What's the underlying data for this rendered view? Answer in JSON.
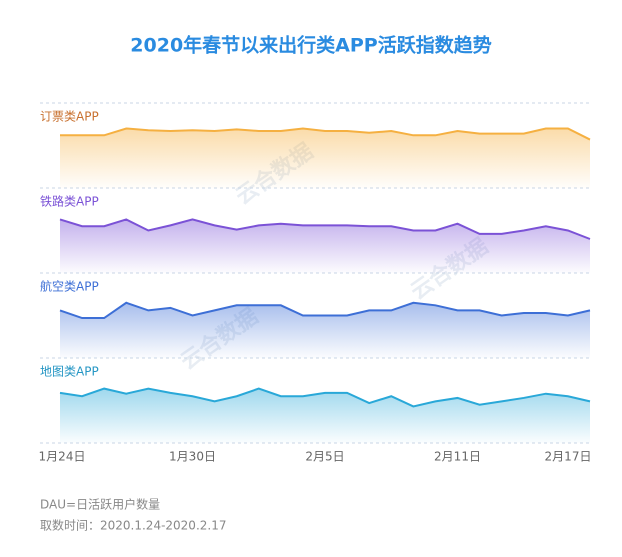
{
  "chart_data": {
    "type": "area",
    "title": "2020年春节以来出行类APP活跃指数趋势",
    "watermark": "云合数据",
    "categories": [
      "1月24日",
      null,
      null,
      null,
      null,
      null,
      "1月30日",
      null,
      null,
      null,
      null,
      null,
      "2月5日",
      null,
      null,
      null,
      null,
      null,
      "2月11日",
      null,
      null,
      null,
      null,
      null,
      "2月17日"
    ],
    "ylim": [
      0,
      100
    ],
    "series": [
      {
        "name": "订票类APP",
        "color": "#f5b041",
        "label_color": "#c8702e",
        "values": [
          62,
          62,
          62,
          70,
          68,
          67,
          68,
          67,
          69,
          67,
          67,
          70,
          67,
          67,
          65,
          67,
          62,
          62,
          67,
          64,
          64,
          64,
          70,
          70,
          57
        ]
      },
      {
        "name": "铁路类APP",
        "color": "#7b52d6",
        "label_color": "#7b52d6",
        "values": [
          63,
          55,
          55,
          63,
          50,
          56,
          63,
          56,
          51,
          56,
          58,
          56,
          56,
          56,
          55,
          55,
          50,
          50,
          58,
          46,
          46,
          50,
          55,
          50,
          40
        ]
      },
      {
        "name": "航空类APP",
        "color": "#3d6fd6",
        "label_color": "#3d6fd6",
        "values": [
          56,
          47,
          47,
          65,
          56,
          59,
          50,
          56,
          62,
          62,
          62,
          50,
          50,
          50,
          56,
          56,
          65,
          62,
          56,
          56,
          50,
          53,
          53,
          50,
          56
        ]
      },
      {
        "name": "地图类APP",
        "color": "#29a8d8",
        "label_color": "#2596c4",
        "values": [
          59,
          55,
          64,
          58,
          64,
          59,
          55,
          49,
          55,
          64,
          55,
          55,
          59,
          59,
          47,
          55,
          43,
          49,
          53,
          45,
          49,
          53,
          58,
          55,
          49
        ]
      }
    ],
    "notes": [
      "DAU=日活跃用户数量",
      "取数时间：2020.1.24-2020.2.17"
    ]
  }
}
